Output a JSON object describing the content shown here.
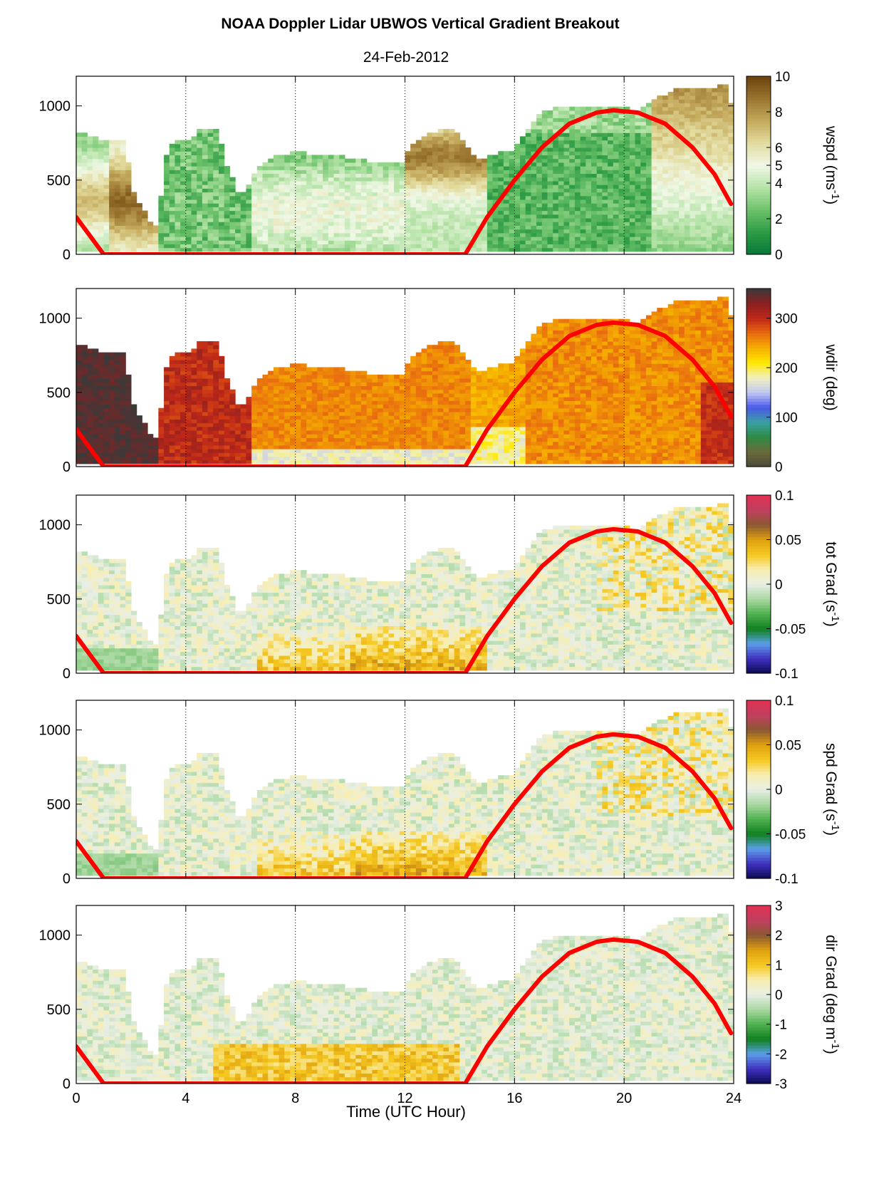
{
  "title": "NOAA Doppler Lidar  UBWOS  Vertical Gradient Breakout",
  "subtitle": "24-Feb-2012",
  "xlabel": "Time (UTC Hour)",
  "chart_data": {
    "type": "heatmap",
    "x": {
      "label": "Time (UTC Hour)",
      "range": [
        0,
        24
      ],
      "ticks": [
        0,
        4,
        8,
        12,
        16,
        20,
        24
      ],
      "tick_labels": [
        "0",
        "4",
        "8",
        "12",
        "16",
        "20",
        "24"
      ],
      "grid": "vertical dotted"
    },
    "y": {
      "range": [
        0,
        1200
      ],
      "ticks": [
        0,
        500,
        1000
      ],
      "tick_labels": [
        "0",
        "500",
        "1000"
      ]
    },
    "overlay_line": {
      "color": "#ff0000",
      "points": [
        [
          0,
          250
        ],
        [
          1,
          0
        ],
        [
          14.2,
          0
        ],
        [
          15,
          250
        ],
        [
          16,
          500
        ],
        [
          17,
          720
        ],
        [
          18,
          880
        ],
        [
          19,
          955
        ],
        [
          19.6,
          970
        ],
        [
          20.5,
          955
        ],
        [
          21.5,
          880
        ],
        [
          22.5,
          720
        ],
        [
          23.3,
          540
        ],
        [
          23.9,
          340
        ]
      ]
    },
    "panels": [
      {
        "label": "wspd (ms",
        "label_sup": "-1",
        "label_end": ")",
        "colorbar_range": [
          0,
          10
        ],
        "colorbar_ticks": [
          0,
          2,
          4,
          5,
          6,
          8,
          10
        ],
        "colorbar_tick_labels": [
          "0",
          "2",
          "4",
          "5",
          "6",
          "8",
          "10"
        ],
        "colormap": [
          "#05793a",
          "#2e9b45",
          "#6cc26a",
          "#b6e3a8",
          "#f0f8e6",
          "#e3dca0",
          "#c4aa5c",
          "#9a7530",
          "#6b420d"
        ],
        "field": "wspd"
      },
      {
        "label": "wdir (deg)",
        "label_sup": "",
        "label_end": "",
        "colorbar_range": [
          0,
          360
        ],
        "colorbar_ticks": [
          0,
          100,
          200,
          300
        ],
        "colorbar_tick_labels": [
          "0",
          "100",
          "200",
          "300"
        ],
        "colormap": [
          "#4a4a3a",
          "#6b6a3a",
          "#2e8b45",
          "#3aa0a0",
          "#4a58e8",
          "#c0c8f0",
          "#f0f0c0",
          "#ffe800",
          "#f5b000",
          "#e86a10",
          "#c02818",
          "#8a2020",
          "#3a3a3a"
        ],
        "field": "wdir"
      },
      {
        "label": "tot Grad (s",
        "label_sup": "-1",
        "label_end": ")",
        "colorbar_range": [
          -0.1,
          0.1
        ],
        "colorbar_ticks": [
          -0.1,
          -0.05,
          0,
          0.05,
          0.1
        ],
        "colorbar_tick_labels": [
          "-0.1",
          "-0.05",
          "0",
          "0.05",
          "0.1"
        ],
        "colormap": [
          "#0a0a50",
          "#4030c0",
          "#5aa0e8",
          "#108020",
          "#50b050",
          "#a8d8a0",
          "#e8eee4",
          "#f8eeb0",
          "#f5c820",
          "#e0a010",
          "#8a5a30",
          "#c04060",
          "#e03050"
        ],
        "field": "grad"
      },
      {
        "label": "spd Grad (s",
        "label_sup": "-1",
        "label_end": ")",
        "colorbar_range": [
          -0.1,
          0.1
        ],
        "colorbar_ticks": [
          -0.1,
          -0.05,
          0,
          0.05,
          0.1
        ],
        "colorbar_tick_labels": [
          "-0.1",
          "-0.05",
          "0",
          "0.05",
          "0.1"
        ],
        "colormap": [
          "#0a0a50",
          "#4030c0",
          "#5aa0e8",
          "#108020",
          "#50b050",
          "#a8d8a0",
          "#e8eee4",
          "#f8eeb0",
          "#f5c820",
          "#e0a010",
          "#8a5a30",
          "#c04060",
          "#e03050"
        ],
        "field": "grad"
      },
      {
        "label": "dir Grad (deg m",
        "label_sup": "-1",
        "label_end": ")",
        "colorbar_range": [
          -3,
          3
        ],
        "colorbar_ticks": [
          -3,
          -2,
          -1,
          0,
          1,
          2,
          3
        ],
        "colorbar_tick_labels": [
          "-3",
          "-2",
          "-1",
          "0",
          "1",
          "2",
          "3"
        ],
        "colormap": [
          "#0a0a50",
          "#4030c0",
          "#5aa0e8",
          "#108020",
          "#50b050",
          "#a8d8a0",
          "#e8eee4",
          "#f8eeb0",
          "#f5c820",
          "#e0a010",
          "#8a5a30",
          "#c04060",
          "#e03050"
        ],
        "field": "dgrad"
      }
    ]
  }
}
